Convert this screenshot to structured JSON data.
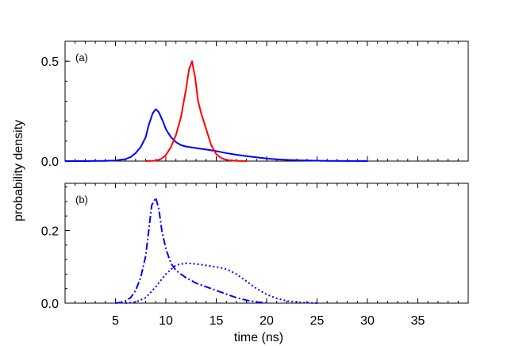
{
  "chart_data": [
    {
      "type": "line",
      "panel_label": "(a)",
      "xlim": [
        0,
        40
      ],
      "ylim": [
        0,
        0.6
      ],
      "yticks": [
        0,
        0.5
      ],
      "ytick_labels": [
        "0.0",
        "0.5"
      ],
      "series": [
        {
          "name": "blue-solid",
          "color": "#0000ff",
          "style": "solid",
          "x": [
            0,
            2,
            4,
            5,
            6,
            6.5,
            7,
            7.5,
            8,
            8.3,
            8.7,
            9,
            9.3,
            9.7,
            10,
            10.5,
            11,
            11.5,
            12,
            13,
            14,
            15,
            16,
            17,
            18,
            19,
            20,
            21,
            22,
            24,
            26,
            28,
            30
          ],
          "y": [
            0,
            0,
            0.001,
            0.003,
            0.01,
            0.02,
            0.04,
            0.07,
            0.12,
            0.18,
            0.24,
            0.26,
            0.245,
            0.2,
            0.16,
            0.12,
            0.095,
            0.08,
            0.073,
            0.065,
            0.058,
            0.05,
            0.04,
            0.032,
            0.025,
            0.019,
            0.013,
            0.009,
            0.006,
            0.003,
            0.001,
            0.0003,
            0
          ]
        },
        {
          "name": "red-solid",
          "color": "#ff0000",
          "style": "solid",
          "x": [
            8,
            9,
            9.5,
            10,
            10.5,
            11,
            11.5,
            12,
            12.3,
            12.6,
            12.9,
            13.2,
            13.5,
            14,
            14.5,
            15,
            15.5,
            16,
            17,
            18
          ],
          "y": [
            0,
            0.002,
            0.01,
            0.03,
            0.07,
            0.13,
            0.22,
            0.36,
            0.46,
            0.5,
            0.42,
            0.3,
            0.24,
            0.16,
            0.08,
            0.035,
            0.015,
            0.006,
            0.001,
            0
          ]
        }
      ]
    },
    {
      "type": "line",
      "panel_label": "(b)",
      "xlabel": "time (ns)",
      "xlim": [
        0,
        40
      ],
      "ylim": [
        0,
        0.33
      ],
      "yticks": [
        0,
        0.2
      ],
      "ytick_labels": [
        "0.0",
        "0.2"
      ],
      "xticks": [
        5,
        10,
        15,
        20,
        25,
        30,
        35
      ],
      "xtick_labels": [
        "5",
        "10",
        "15",
        "20",
        "25",
        "30",
        "35"
      ],
      "series": [
        {
          "name": "blue-dashdot",
          "color": "#0000ff",
          "style": "dashdot",
          "x": [
            5,
            5.5,
            6,
            6.5,
            7,
            7.5,
            8,
            8.3,
            8.6,
            9,
            9.3,
            9.6,
            10,
            10.5,
            11,
            11.5,
            12,
            13,
            14,
            15,
            16,
            17,
            18,
            19,
            20
          ],
          "y": [
            0,
            0.002,
            0.006,
            0.015,
            0.035,
            0.07,
            0.13,
            0.2,
            0.27,
            0.29,
            0.26,
            0.2,
            0.15,
            0.11,
            0.09,
            0.08,
            0.07,
            0.055,
            0.045,
            0.035,
            0.025,
            0.015,
            0.008,
            0.003,
            0.001
          ]
        },
        {
          "name": "blue-dotted",
          "color": "#0000ff",
          "style": "dotted",
          "x": [
            6,
            7,
            8,
            9,
            10,
            11,
            12,
            13,
            14,
            15,
            16,
            17,
            18,
            19,
            20,
            21,
            22,
            23,
            24,
            25
          ],
          "y": [
            0,
            0.003,
            0.015,
            0.045,
            0.08,
            0.105,
            0.11,
            0.108,
            0.104,
            0.1,
            0.094,
            0.08,
            0.06,
            0.04,
            0.024,
            0.013,
            0.006,
            0.003,
            0.001,
            0
          ]
        }
      ]
    }
  ],
  "shared_ylabel": "probability density"
}
